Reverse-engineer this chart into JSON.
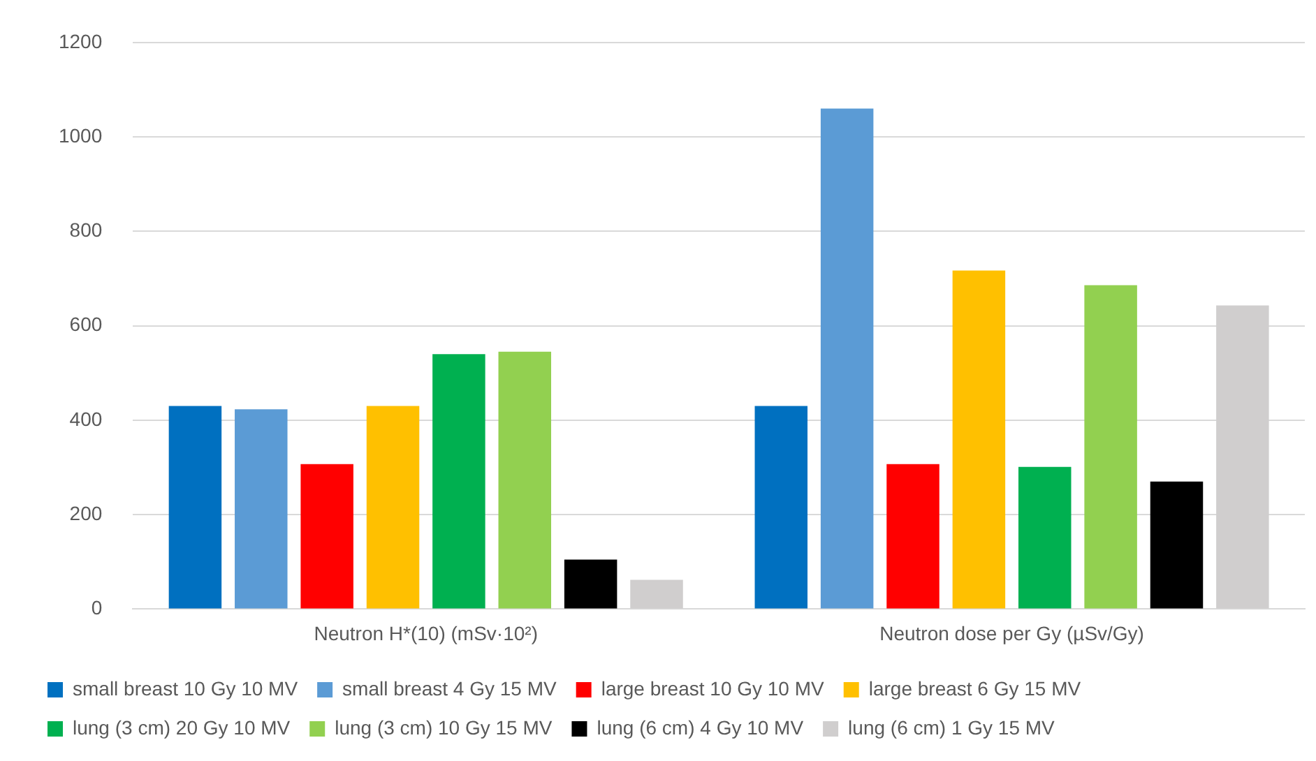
{
  "chart_data": {
    "type": "bar",
    "categories": [
      "Neutron H*(10) (mSv·10²)",
      "Neutron dose per Gy (µSv/Gy)"
    ],
    "series": [
      {
        "name": "small breast 10 Gy 10 MV",
        "color": "#0070c0",
        "values": [
          430,
          430
        ]
      },
      {
        "name": "small breast 4 Gy 15 MV",
        "color": "#5b9bd5",
        "values": [
          423,
          1060
        ]
      },
      {
        "name": "large breast 10 Gy 10 MV",
        "color": "#ff0000",
        "values": [
          307,
          307
        ]
      },
      {
        "name": "large breast 6 Gy 15 MV",
        "color": "#ffc000",
        "values": [
          430,
          717
        ]
      },
      {
        "name": "lung (3 cm) 20 Gy 10 MV",
        "color": "#00b050",
        "values": [
          540,
          301
        ]
      },
      {
        "name": "lung (3 cm) 10 Gy 15 MV",
        "color": "#92d050",
        "values": [
          545,
          686
        ]
      },
      {
        "name": "lung (6 cm) 4 Gy 10 MV",
        "color": "#000000",
        "values": [
          105,
          270
        ]
      },
      {
        "name": "lung (6 cm) 1 Gy 15 MV",
        "color": "#d0cece",
        "values": [
          62,
          643
        ]
      }
    ],
    "ylim": [
      0,
      1200
    ],
    "yticks": [
      0,
      200,
      400,
      600,
      800,
      1000,
      1200
    ],
    "grid": "y",
    "legend": "bottom"
  }
}
